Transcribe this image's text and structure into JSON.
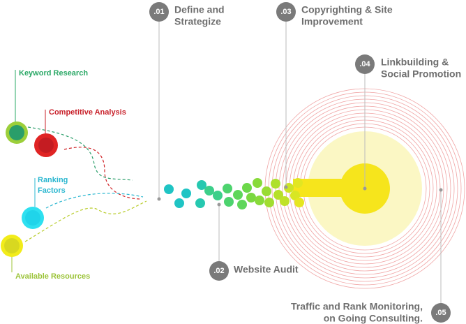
{
  "inputs": [
    {
      "lines": [
        "Keyword Research"
      ]
    },
    {
      "lines": [
        "Competitive Analysis"
      ]
    },
    {
      "lines": [
        "Ranking",
        "Factors"
      ]
    },
    {
      "lines": [
        "Available Resources"
      ]
    }
  ],
  "steps": [
    {
      "number": ".01",
      "lines": [
        "Define and",
        "Strategize"
      ]
    },
    {
      "number": ".02",
      "lines": [
        "Website Audit"
      ]
    },
    {
      "number": ".03",
      "lines": [
        "Copyrighting & Site",
        "Improvement"
      ]
    },
    {
      "number": ".04",
      "lines": [
        "Linkbuilding &",
        "Social Promotion"
      ]
    },
    {
      "number": ".05",
      "lines": [
        "Traffic and Rank Monitoring,",
        "on Going Consulting."
      ]
    }
  ]
}
